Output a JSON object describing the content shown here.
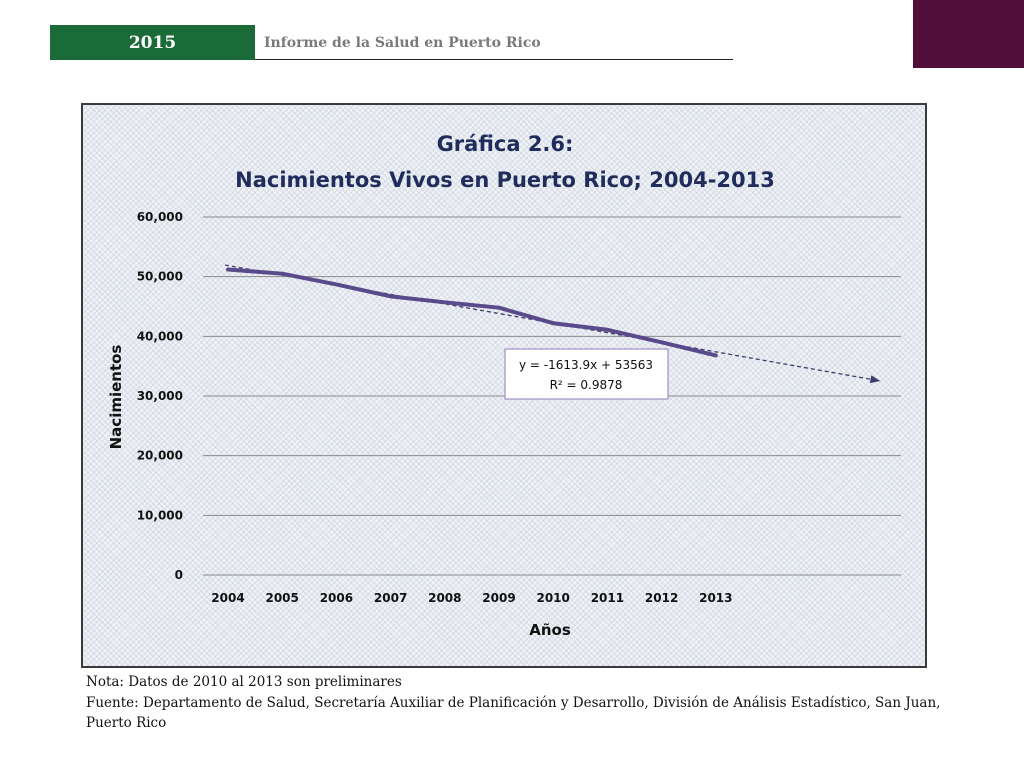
{
  "header": {
    "year": "2015",
    "title": "Informe de la Salud en Puerto Rico"
  },
  "colors": {
    "header_green": "#1a6b37",
    "corner_plum": "#4f0f3a",
    "title_navy": "#1f2c5c",
    "series_purple": "#5b4a8b",
    "trend": "#3d3d6b",
    "box_border": "#a28fc9"
  },
  "chart_data": {
    "type": "line",
    "title": "Gráfica 2.6:",
    "subtitle": "Nacimientos Vivos en Puerto Rico; 2004-2013",
    "xlabel": "Años",
    "ylabel": "Nacimientos",
    "categories": [
      "2004",
      "2005",
      "2006",
      "2007",
      "2008",
      "2009",
      "2010",
      "2011",
      "2012",
      "2013"
    ],
    "series": [
      {
        "values": [
          51200,
          50500,
          48700,
          46700,
          45700,
          44800,
          42200,
          41100,
          39000,
          36800
        ]
      }
    ],
    "yticks": [
      "0",
      "10,000",
      "20,000",
      "30,000",
      "40,000",
      "50,000",
      "60,000"
    ],
    "ylim": [
      0,
      60000
    ],
    "grid": true,
    "trendline": {
      "type": "linear",
      "slope": -1613.9,
      "intercept": 53563,
      "forecast_periods": 3,
      "equation": "y = -1613.9x + 53563",
      "r_squared": "R² = 0.9878"
    }
  },
  "notes": {
    "nota": "Nota: Datos de 2010 al 2013 son preliminares",
    "fuente": "Fuente: Departamento de Salud, Secretaría Auxiliar de Planificación y Desarrollo, División de Análisis Estadístico, San Juan, Puerto Rico"
  }
}
